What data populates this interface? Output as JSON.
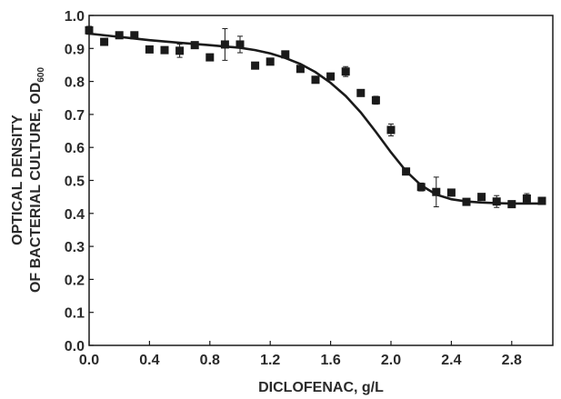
{
  "chart_data": {
    "type": "scatter",
    "xlabel": "DICLOFENAC, g/L",
    "ylabel": {
      "line1": "OPTICAL DENSITY",
      "line2_main": "OF BACTERIAL CULTURE, OD",
      "line2_sub": "600"
    },
    "xlim": [
      0.0,
      3.1
    ],
    "ylim": [
      0.0,
      1.0
    ],
    "x_ticks": [
      {
        "value": 0.0,
        "label": "0.0"
      },
      {
        "value": 0.4,
        "label": "0.4"
      },
      {
        "value": 0.8,
        "label": "0.8"
      },
      {
        "value": 1.2,
        "label": "1.2"
      },
      {
        "value": 1.6,
        "label": "1.6"
      },
      {
        "value": 2.0,
        "label": "2.0"
      },
      {
        "value": 2.4,
        "label": "2.4"
      },
      {
        "value": 2.8,
        "label": "2.8"
      }
    ],
    "y_ticks": [
      {
        "value": 0.0,
        "label": "0.0"
      },
      {
        "value": 0.1,
        "label": "0.1"
      },
      {
        "value": 0.2,
        "label": "0.2"
      },
      {
        "value": 0.3,
        "label": "0.3"
      },
      {
        "value": 0.4,
        "label": "0.4"
      },
      {
        "value": 0.5,
        "label": "0.5"
      },
      {
        "value": 0.6,
        "label": "0.6"
      },
      {
        "value": 0.7,
        "label": "0.7"
      },
      {
        "value": 0.8,
        "label": "0.8"
      },
      {
        "value": 0.9,
        "label": "0.9"
      },
      {
        "value": 1.0,
        "label": "1.0"
      }
    ],
    "series": [
      {
        "marker": "square",
        "color": "#1a1a1a",
        "points": [
          {
            "x": 0.0,
            "y": 0.955,
            "err": 0.012
          },
          {
            "x": 0.1,
            "y": 0.92,
            "err": 0.0
          },
          {
            "x": 0.2,
            "y": 0.94,
            "err": 0.0
          },
          {
            "x": 0.3,
            "y": 0.94,
            "err": 0.01
          },
          {
            "x": 0.4,
            "y": 0.897,
            "err": 0.008
          },
          {
            "x": 0.5,
            "y": 0.895,
            "err": 0.008
          },
          {
            "x": 0.6,
            "y": 0.893,
            "err": 0.02
          },
          {
            "x": 0.7,
            "y": 0.91,
            "err": 0.008
          },
          {
            "x": 0.8,
            "y": 0.873,
            "err": 0.01
          },
          {
            "x": 0.9,
            "y": 0.912,
            "err": 0.048
          },
          {
            "x": 1.0,
            "y": 0.912,
            "err": 0.025
          },
          {
            "x": 1.1,
            "y": 0.848,
            "err": 0.0
          },
          {
            "x": 1.2,
            "y": 0.86,
            "err": 0.008
          },
          {
            "x": 1.3,
            "y": 0.882,
            "err": 0.0
          },
          {
            "x": 1.4,
            "y": 0.838,
            "err": 0.0
          },
          {
            "x": 1.5,
            "y": 0.805,
            "err": 0.008
          },
          {
            "x": 1.6,
            "y": 0.815,
            "err": 0.0
          },
          {
            "x": 1.7,
            "y": 0.83,
            "err": 0.015
          },
          {
            "x": 1.8,
            "y": 0.765,
            "err": 0.0
          },
          {
            "x": 1.9,
            "y": 0.743,
            "err": 0.012
          },
          {
            "x": 2.0,
            "y": 0.653,
            "err": 0.018
          },
          {
            "x": 2.1,
            "y": 0.527,
            "err": 0.0
          },
          {
            "x": 2.2,
            "y": 0.48,
            "err": 0.012
          },
          {
            "x": 2.3,
            "y": 0.465,
            "err": 0.045
          },
          {
            "x": 2.4,
            "y": 0.463,
            "err": 0.0
          },
          {
            "x": 2.5,
            "y": 0.435,
            "err": 0.0
          },
          {
            "x": 2.6,
            "y": 0.45,
            "err": 0.0
          },
          {
            "x": 2.7,
            "y": 0.436,
            "err": 0.018
          },
          {
            "x": 2.8,
            "y": 0.428,
            "err": 0.0
          },
          {
            "x": 2.9,
            "y": 0.445,
            "err": 0.015
          },
          {
            "x": 3.0,
            "y": 0.438,
            "err": 0.0
          }
        ]
      }
    ],
    "fit_curve": {
      "type": "line",
      "color": "#1a1a1a",
      "points": [
        {
          "x": 0.0,
          "y": 0.945
        },
        {
          "x": 0.2,
          "y": 0.935
        },
        {
          "x": 0.4,
          "y": 0.925
        },
        {
          "x": 0.6,
          "y": 0.917
        },
        {
          "x": 0.8,
          "y": 0.91
        },
        {
          "x": 1.0,
          "y": 0.902
        },
        {
          "x": 1.1,
          "y": 0.895
        },
        {
          "x": 1.2,
          "y": 0.885
        },
        {
          "x": 1.3,
          "y": 0.871
        },
        {
          "x": 1.4,
          "y": 0.853
        },
        {
          "x": 1.5,
          "y": 0.828
        },
        {
          "x": 1.6,
          "y": 0.796
        },
        {
          "x": 1.7,
          "y": 0.756
        },
        {
          "x": 1.8,
          "y": 0.706
        },
        {
          "x": 1.9,
          "y": 0.647
        },
        {
          "x": 2.0,
          "y": 0.585
        },
        {
          "x": 2.1,
          "y": 0.528
        },
        {
          "x": 2.2,
          "y": 0.485
        },
        {
          "x": 2.3,
          "y": 0.457
        },
        {
          "x": 2.4,
          "y": 0.443
        },
        {
          "x": 2.5,
          "y": 0.436
        },
        {
          "x": 2.6,
          "y": 0.433
        },
        {
          "x": 2.7,
          "y": 0.431
        },
        {
          "x": 2.8,
          "y": 0.43
        },
        {
          "x": 3.0,
          "y": 0.43
        }
      ]
    },
    "grid": false,
    "legend": "none"
  }
}
